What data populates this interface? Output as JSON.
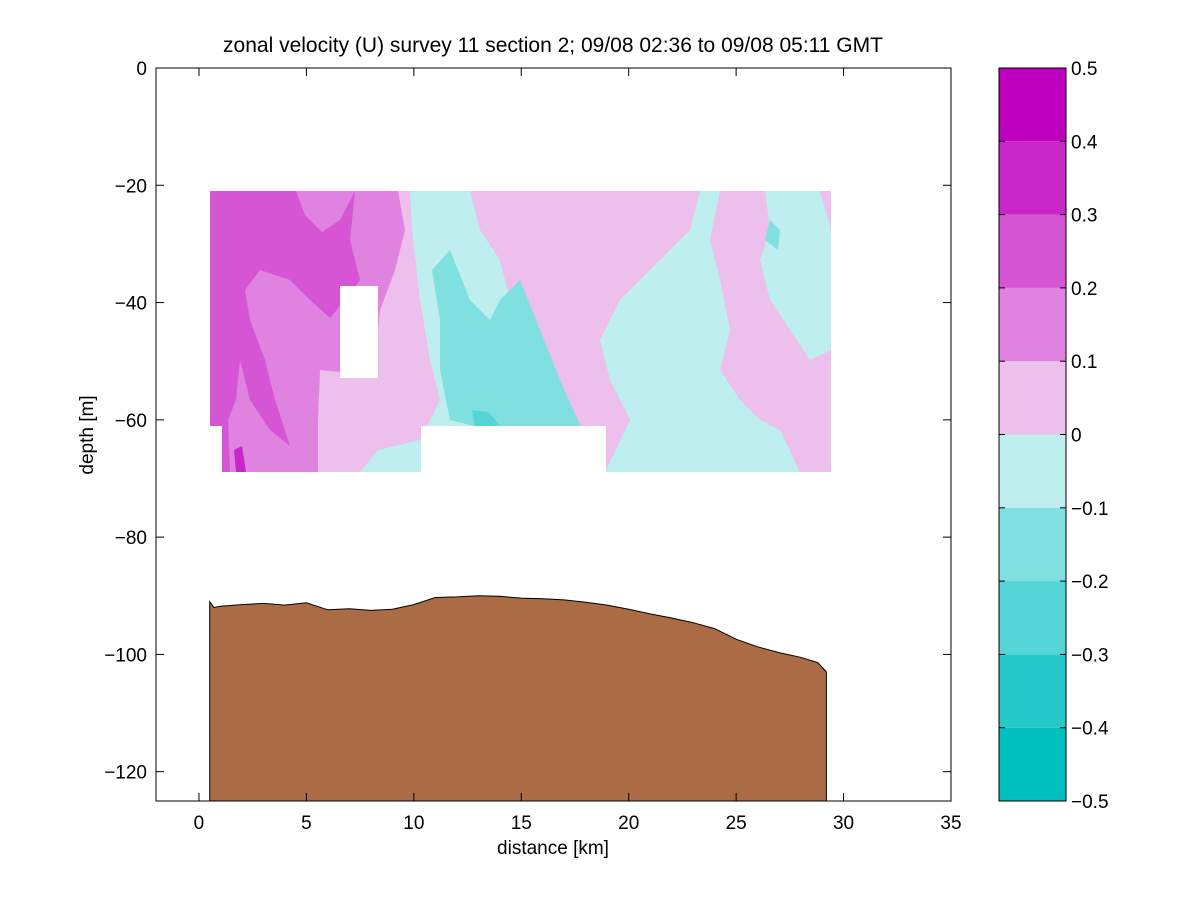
{
  "chart_data": {
    "type": "heatmap",
    "title": "zonal velocity (U) survey 11 section 2; 09/08 02:36 to 09/08 05:11 GMT",
    "xlabel": "distance [km]",
    "ylabel": "depth [m]",
    "xlim": [
      -2,
      35
    ],
    "ylim": [
      -125,
      0
    ],
    "xticks": [
      0,
      5,
      10,
      15,
      20,
      25,
      30,
      35
    ],
    "yticks": [
      0,
      -20,
      -40,
      -60,
      -80,
      -100,
      -120
    ],
    "grid": false,
    "colorbar": {
      "range": [
        -0.5,
        0.5
      ],
      "ticks": [
        "0.5",
        "0.4",
        "0.3",
        "0.2",
        "0.1",
        "0",
        "−0.1",
        "−0.2",
        "−0.3",
        "−0.4",
        "−0.5"
      ],
      "levels": [
        -0.5,
        -0.4,
        -0.3,
        -0.2,
        -0.1,
        0,
        0.1,
        0.2,
        0.3,
        0.4,
        0.5
      ],
      "colors": [
        "#00bfbf",
        "#26c9c9",
        "#55d5d5",
        "#80e0e0",
        "#bfeeee",
        "#ecbfec",
        "#e083e0",
        "#d555d5",
        "#c926c9",
        "#bf00bf"
      ]
    },
    "data_extent": {
      "x": [
        0.5,
        29.4
      ],
      "depth": [
        -21,
        -69
      ],
      "gaps": [
        {
          "x": [
            6.6,
            8.4
          ],
          "depth": [
            -37,
            -53
          ]
        },
        {
          "x": [
            10.4,
            18.9
          ],
          "depth": [
            -61,
            -69
          ]
        },
        {
          "x": [
            0.5,
            1.3
          ],
          "depth": [
            -61,
            -69
          ]
        }
      ]
    },
    "bathymetry": {
      "color": "#ab6b45",
      "x": [
        0.5,
        0.7,
        1,
        2,
        3,
        4,
        5,
        5.5,
        6,
        7,
        8,
        9,
        10,
        11,
        12,
        13,
        14,
        15,
        16,
        17,
        18,
        19,
        20,
        21,
        22,
        23,
        24,
        25,
        26,
        27,
        28,
        28.8,
        29.2
      ],
      "depth": [
        -91,
        -92,
        -91.8,
        -91.5,
        -91.3,
        -91.6,
        -91.2,
        -91.8,
        -92.4,
        -92.2,
        -92.5,
        -92.3,
        -91.5,
        -90.3,
        -90.2,
        -90,
        -90.1,
        -90.4,
        -90.5,
        -90.7,
        -91.1,
        -91.6,
        -92.3,
        -93.1,
        -93.8,
        -94.6,
        -95.6,
        -97.4,
        -98.7,
        -99.7,
        -100.5,
        -101.4,
        -103
      ]
    }
  }
}
